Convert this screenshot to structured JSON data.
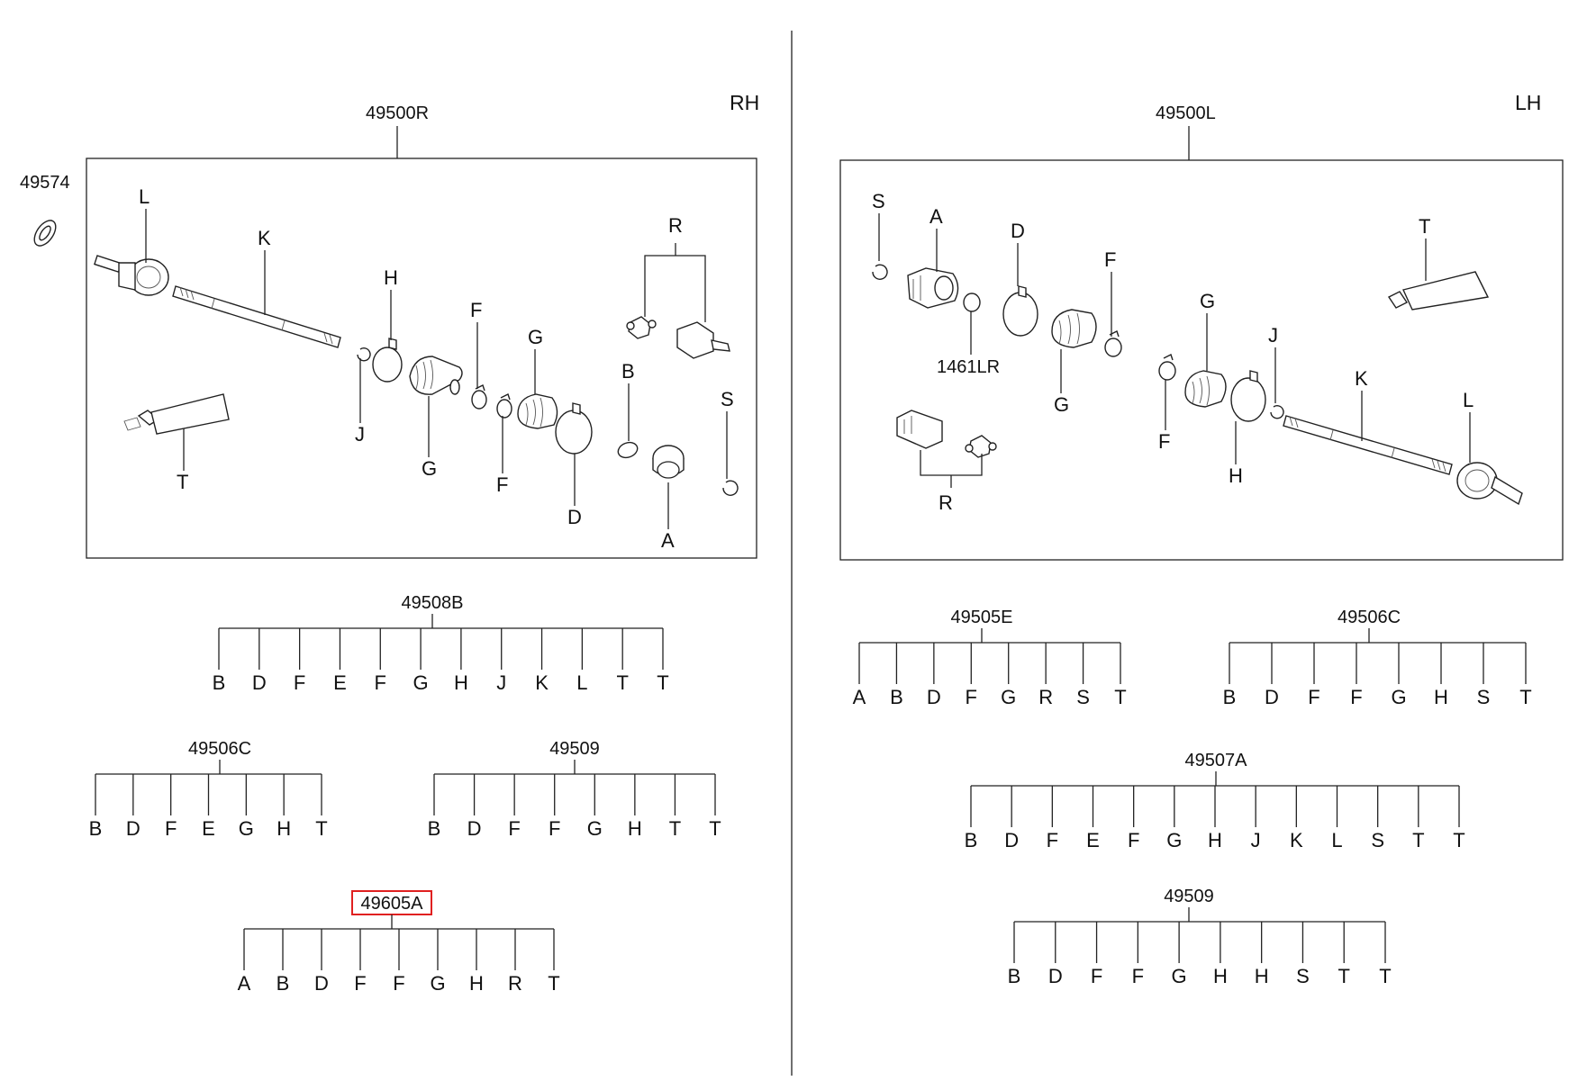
{
  "sides": {
    "rh": {
      "label": "RH",
      "assembly": "49500R"
    },
    "lh": {
      "label": "LH",
      "assembly": "49500L"
    }
  },
  "standalone_parts": {
    "seal": "49574",
    "circlip_lh": "1461LR"
  },
  "rh_callouts": [
    "L",
    "K",
    "H",
    "J",
    "G",
    "F",
    "F",
    "G",
    "D",
    "R",
    "B",
    "A",
    "S",
    "T"
  ],
  "lh_callouts": [
    "S",
    "A",
    "D",
    "F",
    "G",
    "T",
    "J",
    "K",
    "L",
    "G",
    "F",
    "H",
    "R"
  ],
  "kits": [
    {
      "id": "rh-49508B",
      "number": "49508B",
      "members": [
        "B",
        "D",
        "F",
        "E",
        "F",
        "G",
        "H",
        "J",
        "K",
        "L",
        "T",
        "T"
      ]
    },
    {
      "id": "rh-49506C",
      "number": "49506C",
      "members": [
        "B",
        "D",
        "F",
        "E",
        "G",
        "H",
        "T"
      ]
    },
    {
      "id": "rh-49509",
      "number": "49509",
      "members": [
        "B",
        "D",
        "F",
        "F",
        "G",
        "H",
        "T",
        "T"
      ]
    },
    {
      "id": "rh-49605A",
      "number": "49605A",
      "highlighted": true,
      "members": [
        "A",
        "B",
        "D",
        "F",
        "F",
        "G",
        "H",
        "R",
        "T"
      ]
    },
    {
      "id": "lh-49505E",
      "number": "49505E",
      "members": [
        "A",
        "B",
        "D",
        "F",
        "G",
        "R",
        "S",
        "T"
      ]
    },
    {
      "id": "lh-49506C",
      "number": "49506C",
      "members": [
        "B",
        "D",
        "F",
        "F",
        "G",
        "H",
        "S",
        "T"
      ]
    },
    {
      "id": "lh-49507A",
      "number": "49507A",
      "members": [
        "B",
        "D",
        "F",
        "E",
        "F",
        "G",
        "H",
        "J",
        "K",
        "L",
        "S",
        "T",
        "T"
      ]
    },
    {
      "id": "lh-49509",
      "number": "49509",
      "members": [
        "B",
        "D",
        "F",
        "F",
        "G",
        "H",
        "H",
        "S",
        "T",
        "T"
      ]
    }
  ],
  "colors": {
    "highlight": "#e02020",
    "line": "#222222"
  }
}
